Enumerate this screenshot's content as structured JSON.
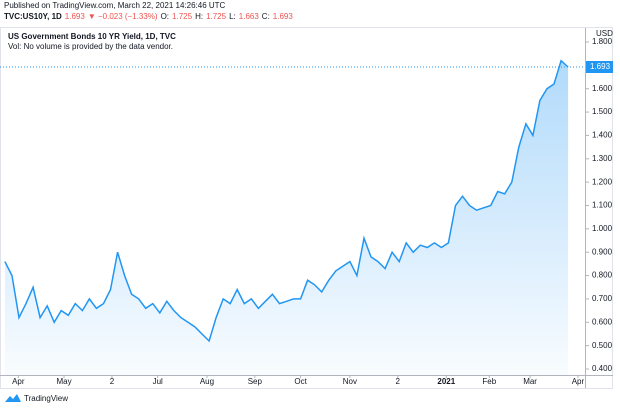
{
  "header": {
    "published": "Published on TradingView.com, March 22, 2021 14:26:46 UTC",
    "symbol": "TVC:US10Y, 1D",
    "last": "1.693",
    "change": "▼ −0.023 (−1.33%)",
    "o_label": "O:",
    "o": "1.725",
    "h_label": "H:",
    "h": "1.725",
    "l_label": "L:",
    "l": "1.663",
    "c_label": "C:",
    "c": "1.693"
  },
  "chart_data": {
    "type": "line",
    "title": "US Government Bonds 10 YR Yield, 1D, TVC",
    "subtitle": "Vol: No volume is provided by the data vendor.",
    "currency": "USD",
    "color": "#2196f3",
    "values": [
      0.86,
      0.8,
      0.62,
      0.68,
      0.75,
      0.62,
      0.67,
      0.6,
      0.65,
      0.63,
      0.68,
      0.65,
      0.7,
      0.66,
      0.68,
      0.74,
      0.9,
      0.8,
      0.72,
      0.7,
      0.66,
      0.68,
      0.64,
      0.69,
      0.65,
      0.62,
      0.6,
      0.58,
      0.55,
      0.52,
      0.62,
      0.7,
      0.68,
      0.74,
      0.68,
      0.7,
      0.66,
      0.69,
      0.72,
      0.68,
      0.69,
      0.7,
      0.7,
      0.78,
      0.76,
      0.73,
      0.78,
      0.82,
      0.84,
      0.86,
      0.8,
      0.96,
      0.88,
      0.86,
      0.83,
      0.9,
      0.86,
      0.94,
      0.9,
      0.93,
      0.92,
      0.94,
      0.92,
      0.94,
      1.1,
      1.14,
      1.1,
      1.08,
      1.09,
      1.1,
      1.16,
      1.15,
      1.2,
      1.35,
      1.45,
      1.4,
      1.55,
      1.6,
      1.62,
      1.72,
      1.693
    ],
    "xlim": [
      -0.7,
      82.4
    ],
    "xticks": [
      {
        "value": 1.9,
        "label": "Apr"
      },
      {
        "value": 8.4,
        "label": "May"
      },
      {
        "value": 15.2,
        "label": "2"
      },
      {
        "value": 21.7,
        "label": "Jul"
      },
      {
        "value": 28.7,
        "label": "Aug"
      },
      {
        "value": 35.5,
        "label": "Sep"
      },
      {
        "value": 42.0,
        "label": "Oct"
      },
      {
        "value": 49.0,
        "label": "Nov"
      },
      {
        "value": 55.8,
        "label": "2"
      },
      {
        "value": 62.7,
        "label": "2021"
      },
      {
        "value": 68.8,
        "label": "Feb"
      },
      {
        "value": 74.6,
        "label": "Mar"
      },
      {
        "value": 81.4,
        "label": "Apr"
      }
    ],
    "ylim": [
      0.4,
      1.8
    ],
    "yticks": [
      {
        "value": 0.4,
        "label": "0.400"
      },
      {
        "value": 0.5,
        "label": "0.500"
      },
      {
        "value": 0.6,
        "label": "0.600"
      },
      {
        "value": 0.7,
        "label": "0.700"
      },
      {
        "value": 0.8,
        "label": "0.800"
      },
      {
        "value": 0.9,
        "label": "0.900"
      },
      {
        "value": 1.0,
        "label": "1.000"
      },
      {
        "value": 1.1,
        "label": "1.100"
      },
      {
        "value": 1.2,
        "label": "1.200"
      },
      {
        "value": 1.3,
        "label": "1.300"
      },
      {
        "value": 1.4,
        "label": "1.400"
      },
      {
        "value": 1.5,
        "label": "1.500"
      },
      {
        "value": 1.6,
        "label": "1.600"
      },
      {
        "value": 1.7,
        "label": "1.700"
      },
      {
        "value": 1.8,
        "label": "1.800"
      }
    ],
    "brand": "TradingView"
  }
}
